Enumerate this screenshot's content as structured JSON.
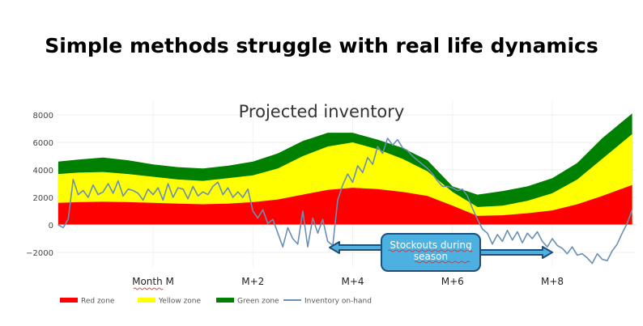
{
  "slide": {
    "title": "Simple methods struggle with real life dynamics"
  },
  "chart_data": {
    "type": "area",
    "title": "Projected inventory",
    "xlabel": "",
    "ylabel": "",
    "ylim": [
      -3000,
      8800
    ],
    "yticks": [
      8000,
      6000,
      4000,
      2000,
      0,
      -2000
    ],
    "xlim": [
      -1.9,
      9.6
    ],
    "xticks": [
      {
        "x": 0,
        "label": "Month M"
      },
      {
        "x": 2,
        "label": "M+2"
      },
      {
        "x": 4,
        "label": "M+4"
      },
      {
        "x": 6,
        "label": "M+6"
      },
      {
        "x": 8,
        "label": "M+8"
      }
    ],
    "grid": true,
    "legend": "bottom-left",
    "x": [
      -1.9,
      -1.5,
      -1,
      -0.5,
      0,
      0.5,
      1,
      1.5,
      2,
      2.5,
      3,
      3.5,
      4,
      4.5,
      5,
      5.5,
      6,
      6.5,
      7,
      7.5,
      8,
      8.5,
      9,
      9.6
    ],
    "series": [
      {
        "name": "Red zone",
        "color": "#ff0000",
        "values": [
          1600,
          1650,
          1680,
          1650,
          1600,
          1550,
          1500,
          1550,
          1650,
          1850,
          2200,
          2550,
          2700,
          2600,
          2400,
          2100,
          1400,
          650,
          700,
          850,
          1050,
          1500,
          2100,
          2900
        ]
      },
      {
        "name": "Yellow zone",
        "color": "#ffff00",
        "values": [
          3700,
          3800,
          3850,
          3700,
          3500,
          3300,
          3200,
          3400,
          3600,
          4100,
          5000,
          5700,
          6000,
          5500,
          4800,
          3900,
          2400,
          1300,
          1400,
          1750,
          2300,
          3300,
          4800,
          6600
        ]
      },
      {
        "name": "Green zone",
        "color": "#008000",
        "values": [
          4600,
          4750,
          4900,
          4700,
          4400,
          4200,
          4100,
          4300,
          4600,
          5200,
          6100,
          6700,
          6700,
          6200,
          5600,
          4700,
          2800,
          2200,
          2450,
          2800,
          3400,
          4500,
          6300,
          8100
        ]
      },
      {
        "name": "Inventory on-hand",
        "color": "#6a8fb4",
        "x": [
          -1.9,
          -1.8,
          -1.7,
          -1.6,
          -1.5,
          -1.4,
          -1.3,
          -1.2,
          -1.1,
          -1,
          -0.9,
          -0.8,
          -0.7,
          -0.6,
          -0.5,
          -0.4,
          -0.3,
          -0.2,
          -0.1,
          0,
          0.1,
          0.2,
          0.3,
          0.4,
          0.5,
          0.6,
          0.7,
          0.8,
          0.9,
          1,
          1.1,
          1.2,
          1.3,
          1.4,
          1.5,
          1.6,
          1.7,
          1.8,
          1.9,
          2,
          2.1,
          2.2,
          2.3,
          2.4,
          2.5,
          2.6,
          2.7,
          2.8,
          2.9,
          3,
          3.1,
          3.2,
          3.3,
          3.4,
          3.5,
          3.6,
          3.7,
          3.8,
          3.9,
          4,
          4.1,
          4.2,
          4.3,
          4.4,
          4.5,
          4.6,
          4.7,
          4.8,
          4.9,
          5,
          5.1,
          5.2,
          5.3,
          5.4,
          5.5,
          5.6,
          5.7,
          5.8,
          5.9,
          6,
          6.1,
          6.2,
          6.3,
          6.4,
          6.5,
          6.6,
          6.7,
          6.8,
          6.9,
          7,
          7.1,
          7.2,
          7.3,
          7.4,
          7.5,
          7.6,
          7.7,
          7.8,
          7.9,
          8,
          8.1,
          8.2,
          8.3,
          8.4,
          8.5,
          8.6,
          8.7,
          8.8,
          8.9,
          9,
          9.1,
          9.2,
          9.3,
          9.4,
          9.5,
          9.6
        ],
        "values": [
          0,
          -200,
          400,
          3300,
          2200,
          2500,
          2000,
          2900,
          2200,
          2400,
          3000,
          2300,
          3200,
          2100,
          2600,
          2500,
          2300,
          1800,
          2600,
          2200,
          2700,
          1800,
          3000,
          2000,
          2700,
          2600,
          1900,
          2800,
          2100,
          2400,
          2200,
          2800,
          3100,
          2200,
          2700,
          2000,
          2400,
          2000,
          2600,
          1000,
          500,
          1100,
          100,
          400,
          -600,
          -1600,
          -200,
          -1000,
          -1400,
          1000,
          -1600,
          500,
          -600,
          400,
          -1200,
          -1500,
          1800,
          2900,
          3700,
          3100,
          4300,
          3800,
          4900,
          4400,
          5700,
          5200,
          6300,
          5800,
          6200,
          5600,
          5400,
          5000,
          4700,
          4400,
          4100,
          3700,
          3200,
          2800,
          2800,
          2700,
          2500,
          2600,
          2100,
          1200,
          400,
          -300,
          -600,
          -1400,
          -700,
          -1200,
          -400,
          -1100,
          -500,
          -1300,
          -600,
          -1000,
          -500,
          -1200,
          -1600,
          -1000,
          -1500,
          -1700,
          -2100,
          -1600,
          -2200,
          -2100,
          -2400,
          -2800,
          -2100,
          -2500,
          -2600,
          -1900,
          -1400,
          -600,
          100,
          1100
        ]
      }
    ],
    "annotation": {
      "text": [
        "Stockouts during",
        "season"
      ],
      "arrows": [
        "left",
        "right"
      ],
      "fill": "#4cb1e0"
    }
  }
}
